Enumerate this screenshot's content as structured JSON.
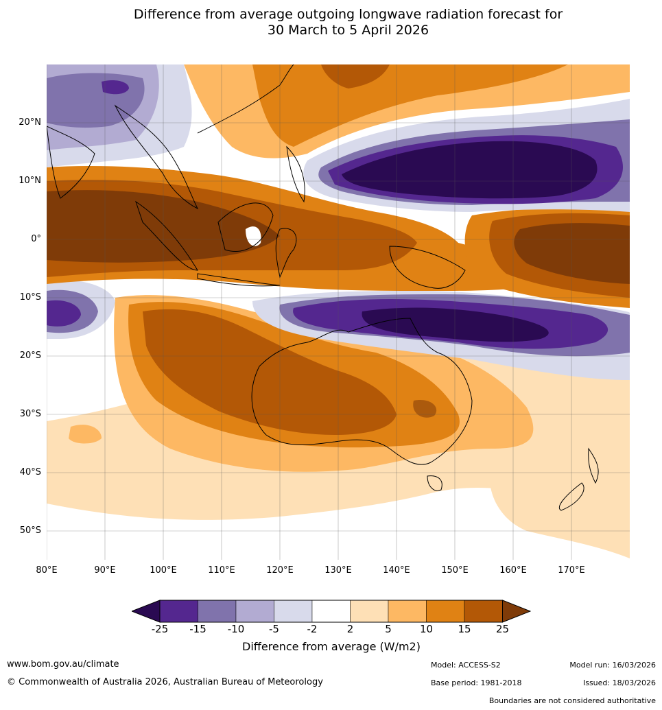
{
  "title": {
    "line1": "Difference from average outgoing longwave radiation forecast for",
    "line2": "30 March to 5 April 2026"
  },
  "map": {
    "lat_labels": [
      "20°N",
      "10°N",
      "0°",
      "10°S",
      "20°S",
      "30°S",
      "40°S",
      "50°S"
    ],
    "lon_labels": [
      "80°E",
      "90°E",
      "100°E",
      "110°E",
      "120°E",
      "130°E",
      "140°E",
      "150°E",
      "160°E",
      "170°E"
    ]
  },
  "legend": {
    "ticks": [
      "-25",
      "-15",
      "-10",
      "-5",
      "-2",
      "2",
      "5",
      "10",
      "15",
      "25"
    ],
    "colors": [
      "#2a0a52",
      "#54278f",
      "#8073ac",
      "#b2abd2",
      "#d8daeb",
      "#ffffff",
      "#fee0b6",
      "#fdb863",
      "#e08214",
      "#b35806",
      "#7f3b08"
    ],
    "title": "Difference from average (W/m2)"
  },
  "footer": {
    "website": "www.bom.gov.au/climate",
    "copyright": "© Commonwealth of Australia 2026, Australian Bureau of Meteorology",
    "model": "Model: ACCESS-S2",
    "base_period": "Base period: 1981-2018",
    "model_run": "Model run: 16/03/2026",
    "issued": "Issued: 18/03/2026",
    "disclaimer": "Boundaries are not considered authoritative"
  }
}
